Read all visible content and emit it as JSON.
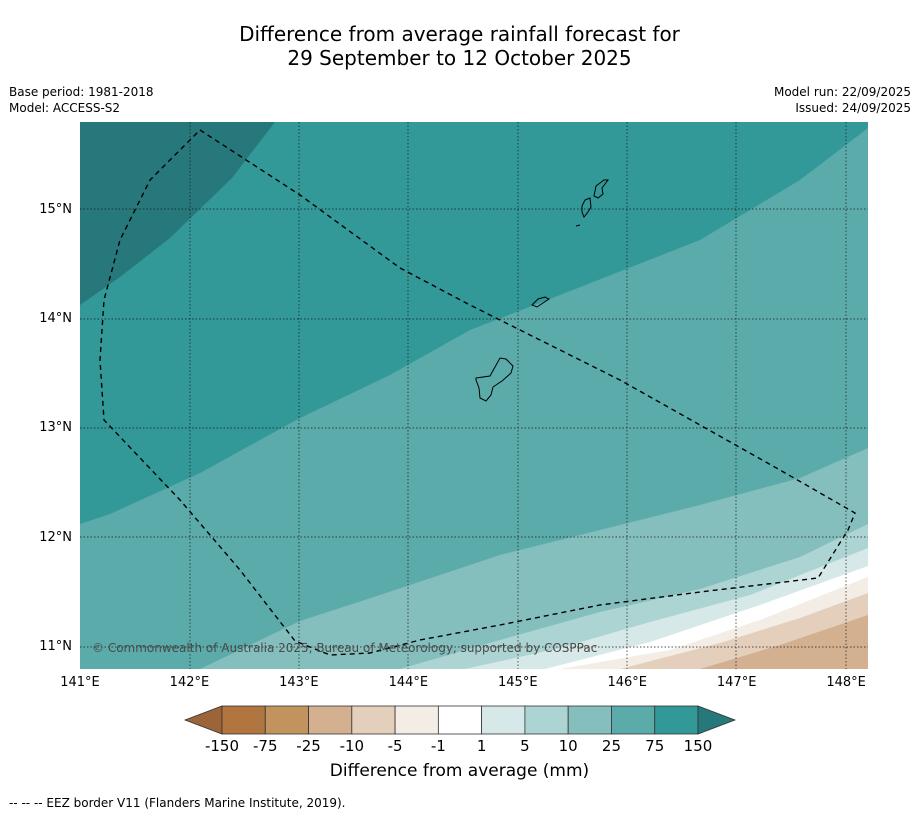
{
  "title": {
    "line1": "Difference from average rainfall forecast for",
    "line2": "29 September to 12 October 2025"
  },
  "meta": {
    "base_period": "Base period: 1981-2018",
    "model": "Model: ACCESS-S2",
    "model_run": "Model run: 22/09/2025",
    "issued": "Issued: 24/09/2025"
  },
  "map": {
    "lon_range": [
      141,
      148.2
    ],
    "lat_range": [
      10.8,
      15.8
    ],
    "lat_ticks": [
      {
        "value": 15,
        "label": "15°N"
      },
      {
        "value": 14,
        "label": "14°N"
      },
      {
        "value": 13,
        "label": "13°N"
      },
      {
        "value": 12,
        "label": "12°N"
      },
      {
        "value": 11,
        "label": "11°N"
      }
    ],
    "lon_ticks": [
      {
        "value": 141,
        "label": "141°E"
      },
      {
        "value": 142,
        "label": "142°E"
      },
      {
        "value": 143,
        "label": "143°E"
      },
      {
        "value": 144,
        "label": "144°E"
      },
      {
        "value": 145,
        "label": "145°E"
      },
      {
        "value": 146,
        "label": "146°E"
      },
      {
        "value": 147,
        "label": "147°E"
      },
      {
        "value": 148,
        "label": "148°E"
      }
    ],
    "copyright": "© Commonwealth of Australia 2025, Bureau of Meteorology, supported by COSPPac"
  },
  "colorbar": {
    "title": "Difference from average (mm)",
    "labels": [
      "-150",
      "-75",
      "-25",
      "-10",
      "-5",
      "-1",
      "1",
      "5",
      "10",
      "25",
      "75",
      "150"
    ],
    "colors": [
      "#b17640",
      "#c2925f",
      "#d3b08f",
      "#e4cfbc",
      "#f3ede6",
      "#ffffff",
      "#d6e9e8",
      "#acd4d3",
      "#84bfbe",
      "#5aabaa",
      "#329898"
    ],
    "under_color": "#9d6537",
    "over_color": "#27787a"
  },
  "footnote": "--  --  -- EEZ border V11 (Flanders Marine Institute, 2019)."
}
